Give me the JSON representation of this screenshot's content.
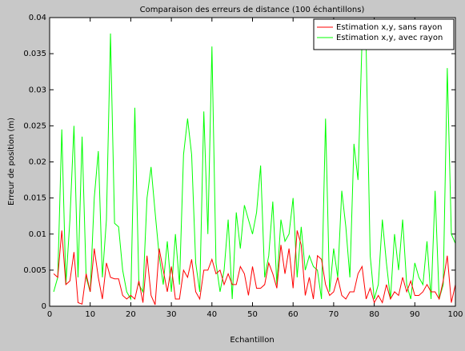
{
  "chart_data": {
    "type": "line",
    "title": "Comparaison des erreurs de distance (100 échantillons)",
    "x_label": "Echantillon",
    "y_label": "Erreur de position (m)",
    "x": [
      1,
      2,
      3,
      4,
      5,
      6,
      7,
      8,
      9,
      10,
      11,
      12,
      13,
      14,
      15,
      16,
      17,
      18,
      19,
      20,
      21,
      22,
      23,
      24,
      25,
      26,
      27,
      28,
      29,
      30,
      31,
      32,
      33,
      34,
      35,
      36,
      37,
      38,
      39,
      40,
      41,
      42,
      43,
      44,
      45,
      46,
      47,
      48,
      49,
      50,
      51,
      52,
      53,
      54,
      55,
      56,
      57,
      58,
      59,
      60,
      61,
      62,
      63,
      64,
      65,
      66,
      67,
      68,
      69,
      70,
      71,
      72,
      73,
      74,
      75,
      76,
      77,
      78,
      79,
      80,
      81,
      82,
      83,
      84,
      85,
      86,
      87,
      88,
      89,
      90,
      91,
      92,
      93,
      94,
      95,
      96,
      97,
      98,
      99,
      100
    ],
    "series": [
      {
        "name": "Estimation x,y, sans rayon",
        "color": "#ff0000",
        "values": [
          0.0045,
          0.004,
          0.0105,
          0.003,
          0.0035,
          0.0075,
          0.0005,
          0.0003,
          0.0045,
          0.002,
          0.008,
          0.004,
          0.001,
          0.006,
          0.004,
          0.0038,
          0.0038,
          0.0015,
          0.001,
          0.0015,
          0.001,
          0.0035,
          0.0005,
          0.007,
          0.0015,
          0.0002,
          0.008,
          0.005,
          0.002,
          0.0055,
          0.001,
          0.001,
          0.005,
          0.004,
          0.0065,
          0.002,
          0.001,
          0.005,
          0.005,
          0.0065,
          0.0045,
          0.005,
          0.003,
          0.0045,
          0.003,
          0.003,
          0.0055,
          0.0045,
          0.0015,
          0.0055,
          0.0025,
          0.0025,
          0.003,
          0.006,
          0.0045,
          0.0025,
          0.0085,
          0.0045,
          0.008,
          0.0025,
          0.0105,
          0.0085,
          0.0015,
          0.004,
          0.001,
          0.007,
          0.0065,
          0.003,
          0.0015,
          0.002,
          0.004,
          0.0015,
          0.001,
          0.002,
          0.002,
          0.0045,
          0.0055,
          0.001,
          0.0025,
          0.0005,
          0.0015,
          0.0005,
          0.003,
          0.001,
          0.002,
          0.0015,
          0.004,
          0.002,
          0.0035,
          0.0015,
          0.0015,
          0.002,
          0.003,
          0.002,
          0.002,
          0.001,
          0.0035,
          0.007,
          0.0005,
          0.003
        ]
      },
      {
        "name": "Estimation x,y, avec rayon",
        "color": "#00ff00",
        "values": [
          0.002,
          0.004,
          0.0245,
          0.003,
          0.012,
          0.025,
          0.004,
          0.0235,
          0.004,
          0.002,
          0.015,
          0.0215,
          0.004,
          0.012,
          0.0378,
          0.0115,
          0.011,
          0.005,
          0.002,
          0.001,
          0.0275,
          0.003,
          0.002,
          0.015,
          0.0193,
          0.013,
          0.007,
          0.003,
          0.009,
          0.002,
          0.01,
          0.003,
          0.021,
          0.026,
          0.021,
          0.006,
          0.002,
          0.027,
          0.01,
          0.036,
          0.006,
          0.002,
          0.005,
          0.012,
          0.001,
          0.013,
          0.008,
          0.014,
          0.012,
          0.01,
          0.013,
          0.0195,
          0.004,
          0.007,
          0.0145,
          0.003,
          0.012,
          0.009,
          0.01,
          0.015,
          0.004,
          0.011,
          0.005,
          0.007,
          0.0055,
          0.005,
          0.001,
          0.026,
          0.002,
          0.008,
          0.004,
          0.016,
          0.011,
          0.004,
          0.0225,
          0.0175,
          0.037,
          0.036,
          0.007,
          0.001,
          0.003,
          0.012,
          0.006,
          0.001,
          0.01,
          0.005,
          0.012,
          0.003,
          0.001,
          0.006,
          0.004,
          0.003,
          0.009,
          0.001,
          0.016,
          0.001,
          0.003,
          0.033,
          0.01,
          0.0087
        ]
      }
    ],
    "xlim": [
      0,
      100
    ],
    "xticks": [
      0,
      10,
      20,
      30,
      40,
      50,
      60,
      70,
      80,
      90,
      100
    ],
    "ylim": [
      0,
      0.04
    ],
    "yticks": [
      0,
      0.005,
      0.01,
      0.015,
      0.02,
      0.025,
      0.03,
      0.035,
      0.04
    ],
    "legend": "upper right"
  }
}
